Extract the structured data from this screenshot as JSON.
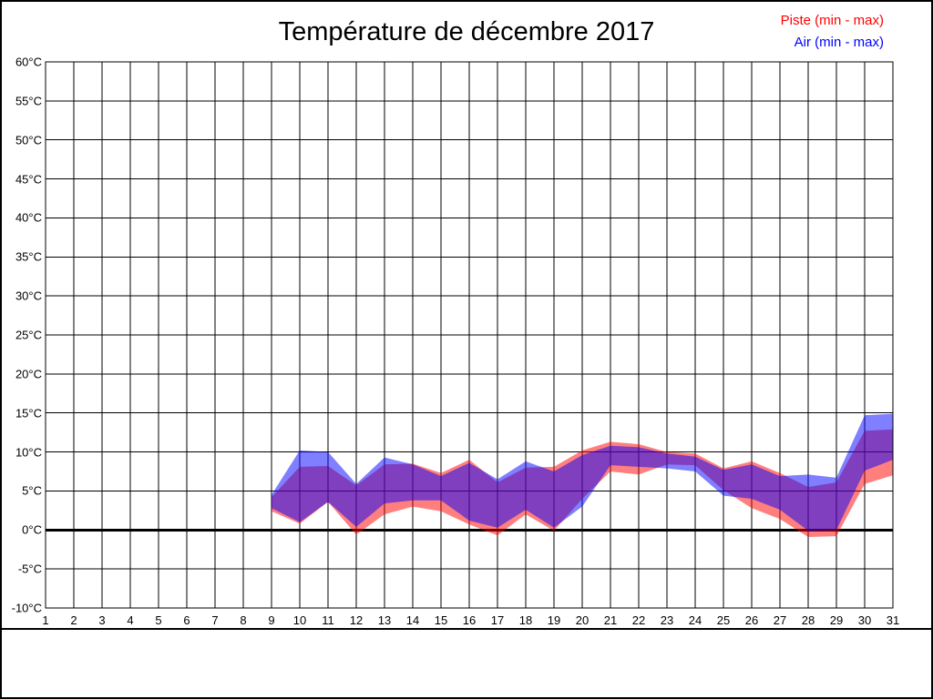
{
  "page": {
    "background": "#ffffff",
    "border_color": "#000000"
  },
  "chart_data": {
    "type": "area",
    "title": "Température de décembre 2017",
    "grid": "on",
    "legend_position": "top-right",
    "x_axis": {
      "min": 1,
      "max": 31,
      "ticks": [
        1,
        2,
        3,
        4,
        5,
        6,
        7,
        8,
        9,
        10,
        11,
        12,
        13,
        14,
        15,
        16,
        17,
        18,
        19,
        20,
        21,
        22,
        23,
        24,
        25,
        26,
        27,
        28,
        29,
        30,
        31
      ]
    },
    "y_axis": {
      "unit": "°C",
      "min": -10,
      "max": 60,
      "step": 5,
      "ticks": [
        60,
        55,
        50,
        45,
        40,
        35,
        30,
        25,
        20,
        15,
        10,
        5,
        0,
        -5,
        -10
      ]
    },
    "zero_line": {
      "value": 0,
      "thick": true,
      "color": "#000000"
    },
    "series": [
      {
        "name": "Piste (min - max)",
        "color": "#ff0000",
        "fill_opacity": 0.5,
        "days": [
          9,
          10,
          11,
          12,
          13,
          14,
          15,
          16,
          17,
          18,
          19,
          20,
          21,
          22,
          23,
          24,
          25,
          26,
          27,
          28,
          29,
          30,
          31
        ],
        "min": [
          2.4,
          0.8,
          3.6,
          -0.6,
          2.0,
          3.0,
          2.4,
          0.7,
          -0.7,
          2.0,
          -0.1,
          4.0,
          7.5,
          7.1,
          8.4,
          8.3,
          5.1,
          2.8,
          1.4,
          -0.9,
          -0.8,
          5.9,
          7.0
        ],
        "max": [
          4.2,
          8.1,
          8.2,
          5.7,
          8.4,
          8.5,
          7.3,
          9.0,
          6.1,
          8.0,
          8.1,
          10.2,
          11.3,
          11.0,
          10.0,
          9.8,
          7.9,
          8.8,
          7.3,
          5.5,
          6.1,
          12.7,
          12.9
        ]
      },
      {
        "name": "Air (min - max)",
        "color": "#0000ff",
        "fill_opacity": 0.5,
        "days": [
          9,
          10,
          11,
          12,
          13,
          14,
          15,
          16,
          17,
          18,
          19,
          20,
          21,
          22,
          23,
          24,
          25,
          26,
          27,
          28,
          29,
          30,
          31
        ],
        "min": [
          2.8,
          1.0,
          3.6,
          0.4,
          3.4,
          3.8,
          3.8,
          1.2,
          0.3,
          2.6,
          0.3,
          3.0,
          8.3,
          8.1,
          7.9,
          7.5,
          4.4,
          4.0,
          2.6,
          -0.1,
          0.0,
          7.6,
          9.0
        ],
        "max": [
          4.5,
          10.2,
          10.0,
          5.9,
          9.3,
          8.4,
          6.9,
          8.6,
          6.5,
          8.8,
          7.5,
          9.6,
          10.8,
          10.6,
          9.8,
          9.4,
          7.7,
          8.4,
          6.9,
          7.1,
          6.7,
          14.7,
          14.9
        ]
      }
    ]
  }
}
